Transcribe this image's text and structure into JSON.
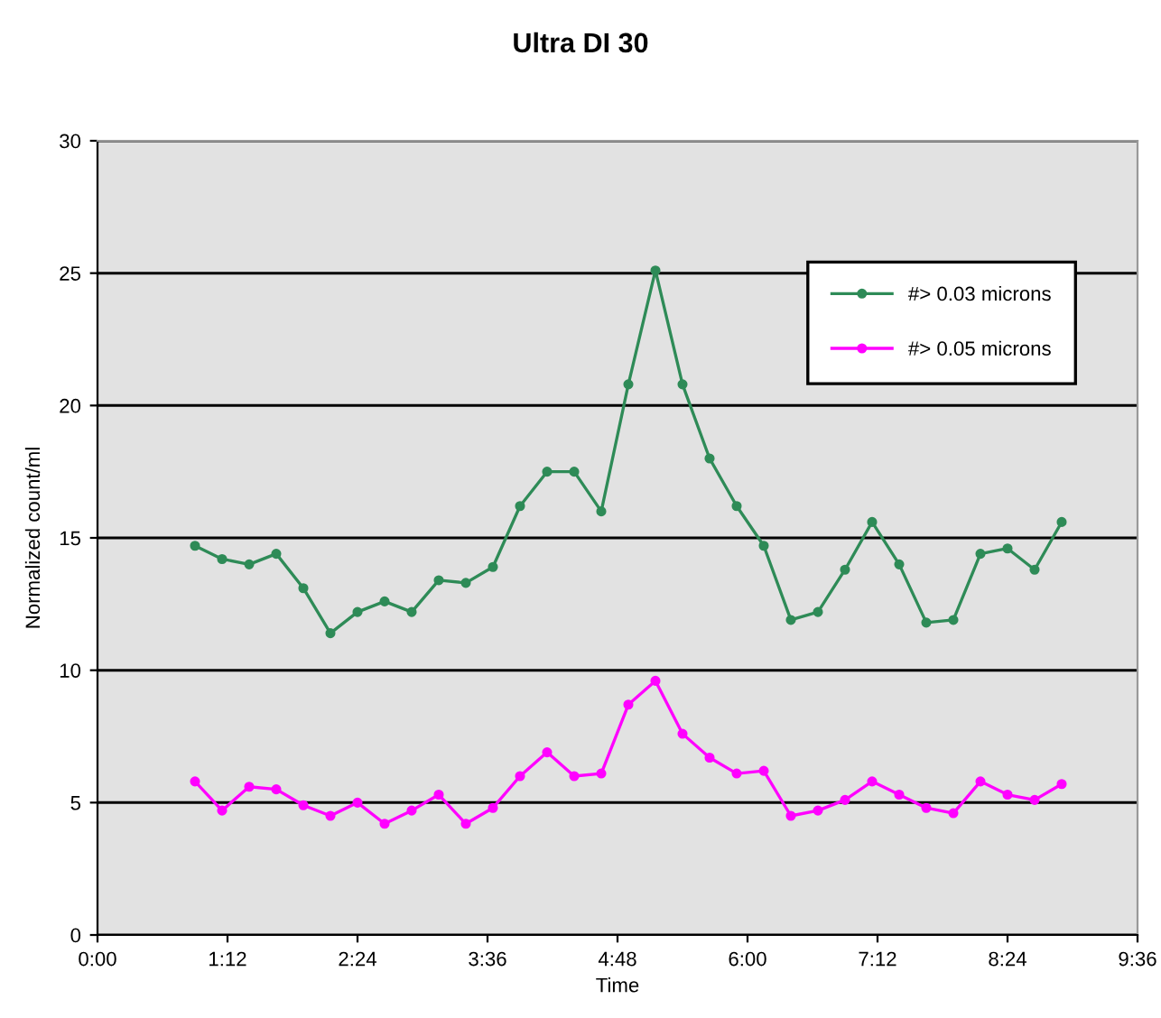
{
  "chart_data": {
    "type": "line",
    "title": "Ultra DI 30",
    "xlabel": "Time",
    "ylabel": "Normalized count/ml",
    "x": [
      0.9,
      1.15,
      1.4,
      1.65,
      1.9,
      2.15,
      2.4,
      2.65,
      2.9,
      3.15,
      3.4,
      3.65,
      3.9,
      4.15,
      4.4,
      4.65,
      4.9,
      5.15,
      5.4,
      5.65,
      5.9,
      6.15,
      6.4,
      6.65,
      6.9,
      7.15,
      7.4,
      7.65,
      7.9,
      8.15,
      8.4,
      8.65,
      8.9
    ],
    "series": [
      {
        "name": "#> 0.03 microns",
        "color": "#2e8b57",
        "values": [
          14.7,
          14.2,
          14.0,
          14.4,
          13.1,
          11.4,
          12.2,
          12.6,
          12.2,
          13.4,
          13.3,
          13.9,
          16.2,
          17.5,
          17.5,
          16.0,
          20.8,
          25.1,
          20.8,
          18.0,
          16.2,
          14.7,
          11.9,
          12.2,
          13.8,
          15.6,
          14.0,
          11.8,
          11.9,
          14.4,
          14.6,
          13.8,
          15.6
        ]
      },
      {
        "name": "#> 0.05 microns",
        "color": "#ff00ff",
        "values": [
          5.8,
          4.7,
          5.6,
          5.5,
          4.9,
          4.5,
          5.0,
          4.2,
          4.7,
          5.3,
          4.2,
          4.8,
          6.0,
          6.9,
          6.0,
          6.1,
          8.7,
          9.6,
          7.6,
          6.7,
          6.1,
          6.2,
          4.5,
          4.7,
          5.1,
          5.8,
          5.3,
          4.8,
          4.6,
          5.8,
          5.3,
          5.1,
          5.7
        ]
      }
    ],
    "xlim": [
      0,
      9.6
    ],
    "xticks": [
      {
        "value": 0,
        "label": "0:00"
      },
      {
        "value": 1.2,
        "label": "1:12"
      },
      {
        "value": 2.4,
        "label": "2:24"
      },
      {
        "value": 3.6,
        "label": "3:36"
      },
      {
        "value": 4.8,
        "label": "4:48"
      },
      {
        "value": 6.0,
        "label": "6:00"
      },
      {
        "value": 7.2,
        "label": "7:12"
      },
      {
        "value": 8.4,
        "label": "8:24"
      },
      {
        "value": 9.6,
        "label": "9:36"
      }
    ],
    "ylim": [
      0,
      30
    ],
    "yticks": [
      0,
      5,
      10,
      15,
      20,
      25,
      30
    ],
    "grid": "y",
    "legend": "top right",
    "marker": "circle",
    "line_style": "solid"
  }
}
